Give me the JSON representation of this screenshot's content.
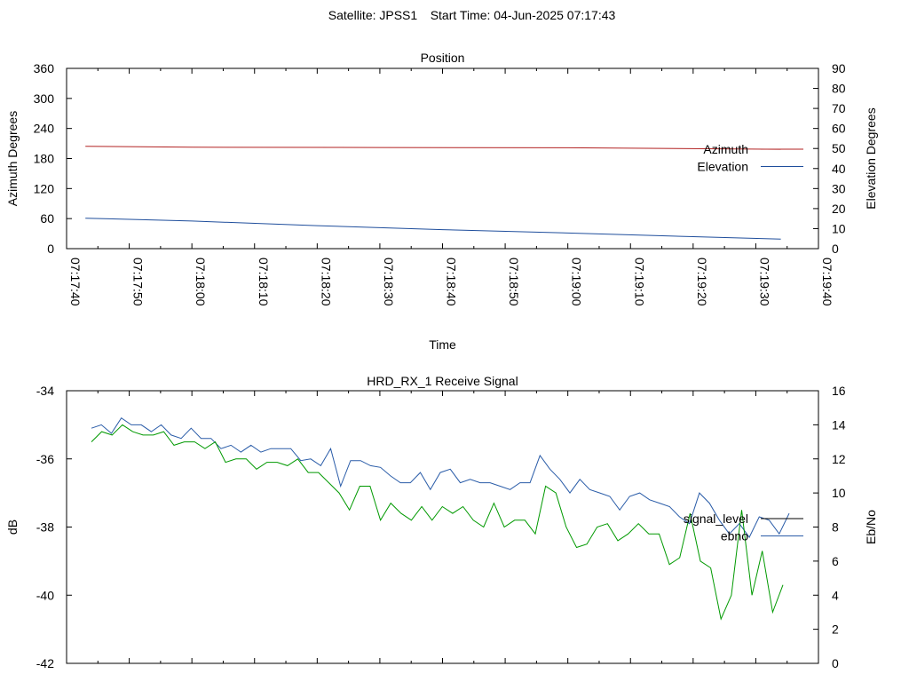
{
  "header": {
    "satellite_label": "Satellite: JPSS1",
    "start_time_label": "Start Time: 04-Jun-2025 07:17:43"
  },
  "chart_data": [
    {
      "type": "line",
      "title": "Position",
      "xlabel": "Time",
      "ylabel_left": "Azimuth Degrees",
      "ylabel_right": "Elevation Degrees",
      "ylim_left": [
        0,
        360
      ],
      "ylim_right": [
        0,
        90
      ],
      "yticks_left": [
        "0",
        "60",
        "120",
        "180",
        "240",
        "300",
        "360"
      ],
      "yticks_right": [
        "0",
        "10",
        "20",
        "30",
        "40",
        "50",
        "60",
        "70",
        "80",
        "90"
      ],
      "xlim_seconds": [
        0,
        120
      ],
      "xticks": [
        "07:17:40",
        "07:17:50",
        "07:18:00",
        "07:18:10",
        "07:18:20",
        "07:18:30",
        "07:18:40",
        "07:18:50",
        "07:19:00",
        "07:19:10",
        "07:19:20",
        "07:19:30",
        "07:19:40"
      ],
      "grid": false,
      "legend_position": "right",
      "series": [
        {
          "name": "Azimuth",
          "axis": "left",
          "color": "#b22222",
          "x": [
            "07:17:43",
            "07:18:00",
            "07:18:30",
            "07:19:00",
            "07:19:34"
          ],
          "values": [
            204.5,
            202.5,
            202.0,
            201.5,
            198.5
          ]
        },
        {
          "name": "Elevation",
          "axis": "right",
          "color": "#1f4e9c",
          "x": [
            "07:17:43",
            "07:18:00",
            "07:18:20",
            "07:18:40",
            "07:19:00",
            "07:19:20",
            "07:19:34"
          ],
          "values": [
            15.2,
            13.8,
            11.5,
            9.5,
            7.8,
            6.0,
            4.8
          ]
        }
      ]
    },
    {
      "type": "line",
      "title": "HRD_RX_1 Receive Signal",
      "ylabel_left": "dB",
      "ylabel_right": "Eb/No",
      "ylim_left": [
        -42,
        -34
      ],
      "ylim_right": [
        0,
        16
      ],
      "yticks_left": [
        "-34",
        "-36",
        "-38",
        "-40",
        "-42"
      ],
      "yticks_right": [
        "0",
        "2",
        "4",
        "6",
        "8",
        "10",
        "12",
        "14",
        "16"
      ],
      "xlim_seconds": [
        0,
        120
      ],
      "grid": false,
      "legend_position": "right",
      "series": [
        {
          "name": "signal_level",
          "axis": "left",
          "color": "#000000",
          "values": []
        },
        {
          "name": "ebno",
          "axis": "right",
          "color": "#2a5ca8",
          "values": [
            13.8,
            14.0,
            13.5,
            14.4,
            14.0,
            14.0,
            13.6,
            14.0,
            13.4,
            13.2,
            13.8,
            13.2,
            13.2,
            12.6,
            12.8,
            12.4,
            12.8,
            12.4,
            12.6,
            12.6,
            12.6,
            11.9,
            12.0,
            11.6,
            12.6,
            10.4,
            11.9,
            11.9,
            11.6,
            11.5,
            11.0,
            10.6,
            10.6,
            11.2,
            10.2,
            11.2,
            11.4,
            10.6,
            10.8,
            10.6,
            10.6,
            10.4,
            10.2,
            10.6,
            10.6,
            12.2,
            11.4,
            10.8,
            10.0,
            10.8,
            10.2,
            10.0,
            9.8,
            9.0,
            9.8,
            10.0,
            9.6,
            9.4,
            9.2,
            8.6,
            8.2,
            10.0,
            9.4,
            8.4,
            7.6,
            8.2,
            7.4,
            8.6,
            8.4,
            7.6,
            8.8
          ]
        },
        {
          "name": "",
          "axis": "right",
          "color": "#009900",
          "values": [
            13.0,
            13.6,
            13.4,
            14.0,
            13.6,
            13.4,
            13.4,
            13.6,
            12.8,
            13.0,
            13.0,
            12.6,
            13.0,
            11.8,
            12.0,
            12.0,
            11.4,
            11.8,
            11.8,
            11.6,
            12.0,
            11.2,
            11.2,
            10.6,
            10.0,
            9.0,
            10.4,
            10.4,
            8.4,
            9.4,
            8.8,
            8.4,
            9.2,
            8.4,
            9.2,
            8.8,
            9.2,
            8.4,
            8.0,
            9.4,
            8.0,
            8.4,
            8.4,
            7.6,
            10.4,
            10.0,
            8.0,
            6.8,
            7.0,
            8.0,
            8.2,
            7.2,
            7.6,
            8.2,
            7.6,
            7.6,
            5.8,
            6.2,
            8.8,
            6.0,
            5.6,
            2.6,
            4.0,
            9.0,
            4.0,
            6.6,
            3.0,
            4.6
          ]
        }
      ]
    }
  ]
}
